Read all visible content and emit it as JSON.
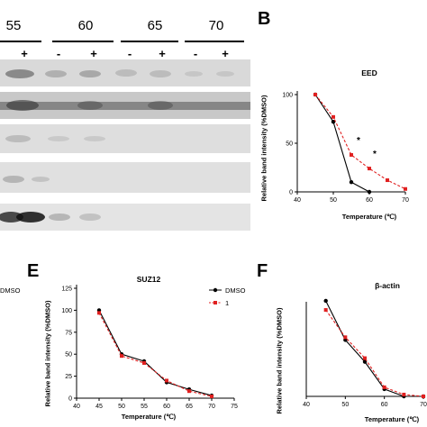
{
  "blot": {
    "temperatures": [
      "55",
      "60",
      "65",
      "70"
    ],
    "signs": [
      "+",
      "-",
      "+",
      "-",
      "+",
      "-",
      "+"
    ]
  },
  "panels": {
    "b_letter": "B",
    "e_letter": "E",
    "f_letter": "F"
  },
  "legend_partial": "DMSO",
  "chart_data": [
    {
      "panel": "B",
      "type": "line",
      "title": "EED",
      "xlabel": "Temperature (℃)",
      "ylabel": "Relative band intensity (%DMSO)",
      "xlim": [
        40,
        70
      ],
      "ylim": [
        0,
        100
      ],
      "xticks": [
        "40",
        "50",
        "60",
        "70"
      ],
      "yticks": [
        "0",
        "50",
        "100"
      ],
      "series": [
        {
          "name": "DMSO",
          "color": "#000000",
          "x": [
            45,
            50,
            55,
            60
          ],
          "y": [
            100,
            72,
            10,
            0
          ]
        },
        {
          "name": "1",
          "color": "#e02020",
          "x": [
            45,
            50,
            55,
            60,
            65,
            70
          ],
          "y": [
            100,
            77,
            38,
            24,
            12,
            3
          ]
        }
      ],
      "annotations": [
        {
          "text": "*",
          "x": 57,
          "y": 50
        },
        {
          "text": "*",
          "x": 61.5,
          "y": 36
        }
      ]
    },
    {
      "panel": "E",
      "type": "line",
      "title": "SUZ12",
      "xlabel": "Temperature (℃)",
      "ylabel": "Relative band intensity (%DMSO)",
      "xlim": [
        40,
        75
      ],
      "ylim": [
        0,
        125
      ],
      "xticks": [
        "40",
        "45",
        "50",
        "55",
        "60",
        "65",
        "70",
        "75"
      ],
      "yticks": [
        "0",
        "25",
        "50",
        "75",
        "100",
        "125"
      ],
      "legend": [
        "DMSO",
        "1"
      ],
      "series": [
        {
          "name": "DMSO",
          "color": "#000000",
          "x": [
            45,
            50,
            55,
            60,
            65,
            70
          ],
          "y": [
            100,
            50,
            42,
            18,
            10,
            3
          ]
        },
        {
          "name": "1",
          "color": "#e02020",
          "x": [
            45,
            50,
            55,
            60,
            65,
            70
          ],
          "y": [
            97,
            48,
            40,
            20,
            8,
            2
          ]
        }
      ]
    },
    {
      "panel": "F",
      "type": "line",
      "title": "β-actin",
      "xlabel": "Temperature (℃)",
      "ylabel": "Relative band intensity (%DMSO)",
      "xlim": [
        40,
        70
      ],
      "ylim": [
        0,
        100
      ],
      "xticks": [
        "40",
        "50",
        "60",
        "70"
      ],
      "yticks": [],
      "series": [
        {
          "name": "DMSO",
          "color": "#000000",
          "x": [
            45,
            50,
            55,
            60,
            65,
            70
          ],
          "y": [
            105,
            62,
            38,
            8,
            0,
            0
          ]
        },
        {
          "name": "1",
          "color": "#e02020",
          "x": [
            45,
            50,
            55,
            60,
            65,
            70
          ],
          "y": [
            95,
            65,
            42,
            10,
            2,
            0
          ]
        }
      ]
    }
  ]
}
